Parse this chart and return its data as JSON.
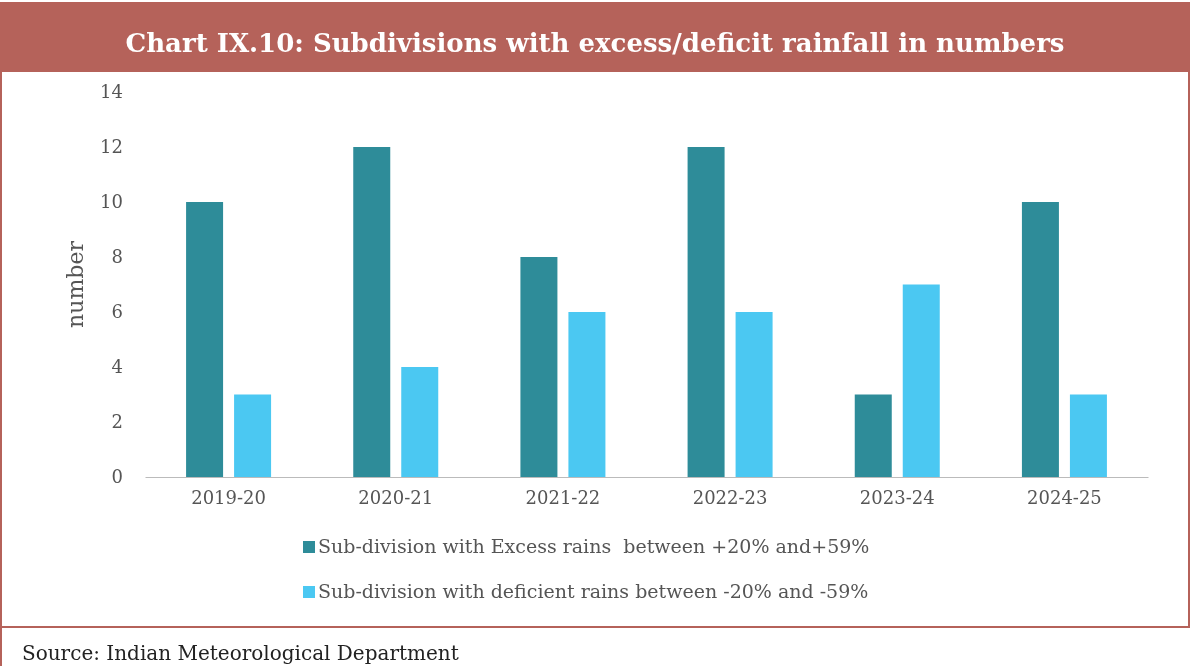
{
  "chart_data": {
    "type": "bar",
    "title": "Chart IX.10: Subdivisions with excess/deficit rainfall in numbers",
    "ylabel": "number",
    "categories": [
      "2019-20",
      "2020-21",
      "2021-22",
      "2022-23",
      "2023-24",
      "2024-25"
    ],
    "series": [
      {
        "name": "Sub-division with Excess rains  between +20% and+59%",
        "color": "#2e8c99",
        "values": [
          10,
          12,
          8,
          12,
          3,
          10
        ]
      },
      {
        "name": "Sub-division with deficient rains between -20% and -59%",
        "color": "#4bc8f2",
        "values": [
          3,
          4,
          6,
          6,
          7,
          3
        ]
      }
    ],
    "ylim": [
      0,
      14
    ],
    "yticks": [
      0,
      2,
      4,
      6,
      8,
      10,
      12,
      14
    ],
    "grid": false,
    "legend": "bottom",
    "annotations": [
      "Source: Indian Meteorological Department"
    ]
  }
}
